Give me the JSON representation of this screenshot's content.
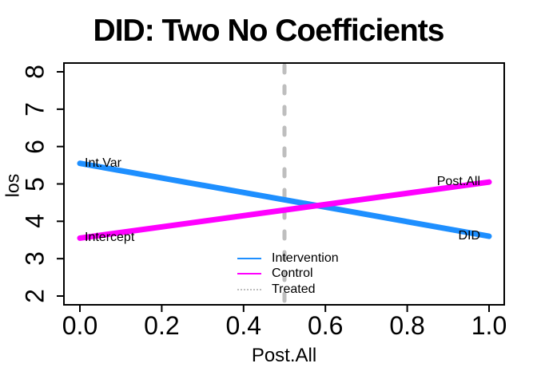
{
  "title": "DID: Two No Coefficients",
  "axes": {
    "x": {
      "label": "Post.All",
      "tick_labels": [
        "0.0",
        "0.2",
        "0.4",
        "0.6",
        "0.8",
        "1.0"
      ]
    },
    "y": {
      "label": "los",
      "tick_labels": [
        "2",
        "3",
        "4",
        "5",
        "6",
        "7",
        "8"
      ]
    }
  },
  "legend": {
    "entries": [
      {
        "label": "Intervention",
        "color": "#1E8FFF",
        "line_style": "solid"
      },
      {
        "label": "Control",
        "color": "#FF00FF",
        "line_style": "solid"
      },
      {
        "label": "Treated",
        "color": "#BEBEBE",
        "line_style": "dotted"
      }
    ]
  },
  "chart_data": {
    "type": "line",
    "title": "DID: Two No Coefficients",
    "xlabel": "Post.All",
    "ylabel": "los",
    "xlim": [
      0,
      1
    ],
    "ylim": [
      2,
      8
    ],
    "x_ticks": [
      0,
      0.2,
      0.4,
      0.6,
      0.8,
      1.0
    ],
    "y_ticks": [
      2,
      3,
      4,
      5,
      6,
      7,
      8
    ],
    "grid": false,
    "legend_position": "bottom-center-inside",
    "series": [
      {
        "name": "Intervention",
        "color": "#1E8FFF",
        "line_width": 7,
        "x": [
          0,
          1
        ],
        "values": [
          5.55,
          3.6
        ],
        "label_start": "Int.Var",
        "label_end": "DID"
      },
      {
        "name": "Control",
        "color": "#FF00FF",
        "line_width": 7,
        "x": [
          0,
          1
        ],
        "values": [
          3.55,
          5.05
        ],
        "label_start": "Intercept",
        "label_end": "Post.All"
      }
    ],
    "vline": {
      "name": "Treated",
      "x": 0.5,
      "color": "#BEBEBE",
      "style": "dashed",
      "width": 5
    }
  }
}
